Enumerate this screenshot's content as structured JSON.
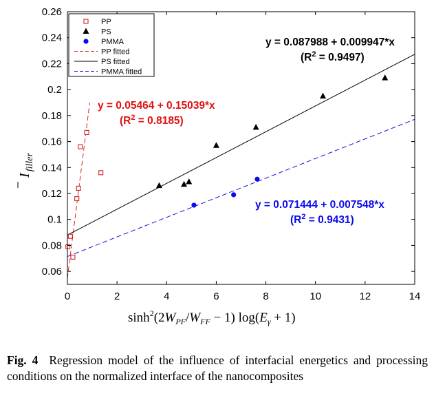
{
  "chart_data": {
    "type": "scatter",
    "xlabel": "sinh²(2W_PF/W_FF − 1) log(E_γ + 1)",
    "ylabel": "Ī_filler",
    "xlim": [
      0,
      14
    ],
    "ylim": [
      0.05,
      0.26
    ],
    "xticks": [
      0,
      2,
      4,
      6,
      8,
      10,
      12,
      14
    ],
    "yticks": [
      0.06,
      0.08,
      0.1,
      0.12,
      0.14,
      0.16,
      0.18,
      0.2,
      0.22,
      0.24,
      0.26
    ],
    "xtick_labels": [
      "0",
      "2",
      "4",
      "6",
      "8",
      "10",
      "12",
      "14"
    ],
    "ytick_labels": [
      "0.06",
      "0.08",
      "0.1",
      "0.12",
      "0.14",
      "0.16",
      "0.18",
      "0.2",
      "0.22",
      "0.24",
      "0.26"
    ],
    "grid": false,
    "legend_position": "top-left",
    "series": [
      {
        "name": "PP",
        "marker": "square-open",
        "color": "#cc2222",
        "x": [
          0.02,
          0.12,
          0.22,
          0.38,
          0.45,
          0.52,
          0.78,
          1.35
        ],
        "y": [
          0.079,
          0.087,
          0.071,
          0.116,
          0.124,
          0.156,
          0.167,
          0.136
        ]
      },
      {
        "name": "PS",
        "marker": "triangle-filled",
        "color": "#000000",
        "x": [
          3.7,
          4.7,
          4.9,
          6.0,
          7.6,
          10.3,
          12.8
        ],
        "y": [
          0.126,
          0.127,
          0.129,
          0.157,
          0.171,
          0.195,
          0.209
        ]
      },
      {
        "name": "PMMA",
        "marker": "circle-filled",
        "color": "#0a0aee",
        "x": [
          5.1,
          6.7,
          7.65
        ],
        "y": [
          0.111,
          0.119,
          0.131
        ]
      }
    ],
    "fits": [
      {
        "name": "PP fitted",
        "style": "dashed",
        "color": "#e02020",
        "intercept": 0.05464,
        "slope": 0.15039,
        "x_range": [
          0,
          0.9
        ],
        "equation": "y = 0.05464 + 0.15039*x",
        "r2_prefix": "(R",
        "r2_sup": "2",
        "r2_value": " = 0.8185)",
        "label_color": "#e01010"
      },
      {
        "name": "PS fitted",
        "style": "solid",
        "color": "#000000",
        "intercept": 0.087988,
        "slope": 0.009947,
        "x_range": [
          0,
          14
        ],
        "equation": "y = 0.087988 + 0.009947*x",
        "r2_prefix": "(R",
        "r2_sup": "2",
        "r2_value": " = 0.9497)",
        "label_color": "#000000"
      },
      {
        "name": "PMMA fitted",
        "style": "dashed",
        "color": "#1010dd",
        "intercept": 0.071444,
        "slope": 0.007548,
        "x_range": [
          0,
          14
        ],
        "equation": "y = 0.071444 + 0.007548*x",
        "r2_prefix": "(R",
        "r2_sup": "2",
        "r2_value": " = 0.9431)",
        "label_color": "#0a0aee"
      }
    ]
  },
  "caption": {
    "label": "Fig. 4",
    "text": "Regression model of the influence of interfacial energetics and processing conditions on the normalized interface of the nanocomposites"
  }
}
